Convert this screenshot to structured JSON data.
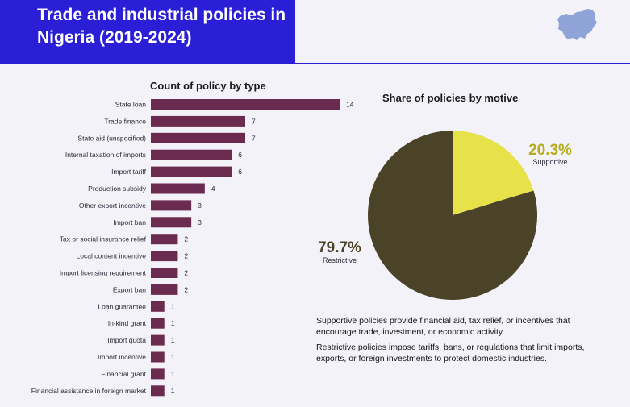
{
  "header": {
    "title": "Trade and industrial policies in Nigeria (2019-2024)",
    "band_color": "#2a1fd6",
    "map_icon": "nigeria-map-icon",
    "map_color": "#8fa3d8"
  },
  "chart_data": [
    {
      "type": "bar",
      "orientation": "horizontal",
      "title": "Count of policy by type",
      "bar_color": "#6b2a50",
      "categories": [
        "State loan",
        "Trade finance",
        "State aid (unspecified)",
        "Internal taxation of imports",
        "Import tariff",
        "Production subsidy",
        "Other export incentive",
        "Import ban",
        "Tax or social insurance relief",
        "Local content incentive",
        "Import licensing requirement",
        "Export ban",
        "Loan guarantee",
        "In-kind grant",
        "Import quota",
        "Import incentive",
        "Financial grant",
        "Financial assistance in foreign market"
      ],
      "values": [
        14,
        7,
        7,
        6,
        6,
        4,
        3,
        3,
        2,
        2,
        2,
        2,
        1,
        1,
        1,
        1,
        1,
        1
      ]
    },
    {
      "type": "pie",
      "title": "Share of policies by motive",
      "slices": [
        {
          "label": "Supportive",
          "value": 20.3,
          "display": "20.3%",
          "color": "#e8e24a",
          "text_color": "#b8ad1c"
        },
        {
          "label": "Restrictive",
          "value": 79.7,
          "display": "79.7%",
          "color": "#4a4327",
          "text_color": "#4a4327"
        }
      ]
    }
  ],
  "notes": [
    "Supportive policies provide financial aid, tax relief, or incentives that encourage trade, investment, or economic activity.",
    "Restrictive policies impose tariffs, bans, or regulations that limit imports, exports, or foreign investments to protect domestic industries."
  ]
}
